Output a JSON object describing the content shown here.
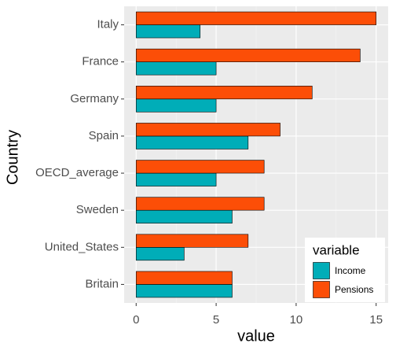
{
  "chart_data": {
    "type": "bar",
    "orientation": "horizontal",
    "x_label": "value",
    "y_label": "Country",
    "categories": [
      "Italy",
      "France",
      "Germany",
      "Spain",
      "OECD_average",
      "Sweden",
      "United_States",
      "Britain"
    ],
    "series": [
      {
        "name": "Income",
        "color": "#00adb8",
        "values": [
          4,
          5,
          5,
          7,
          5,
          6,
          3,
          6
        ]
      },
      {
        "name": "Pensions",
        "color": "#fc4e07",
        "values": [
          15,
          14,
          11,
          9,
          8,
          8,
          7,
          6
        ]
      }
    ],
    "xlim": [
      -0.75,
      15.75
    ],
    "xticks": [
      0,
      5,
      10,
      15
    ],
    "grid": true,
    "legend_title": "variable",
    "legend_position": "bottom-right"
  }
}
